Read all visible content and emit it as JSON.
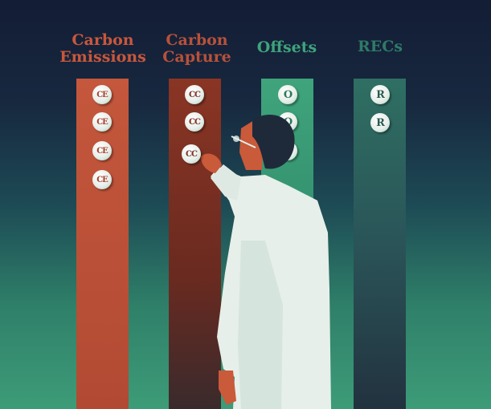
{
  "columns": [
    {
      "title_line1": "Carbon",
      "title_line2": "Emissions",
      "token": "CE",
      "color": "#c4573c",
      "title_color": "#c9573c"
    },
    {
      "title_line1": "Carbon",
      "title_line2": "Capture",
      "token": "CC",
      "color": "#8a3524",
      "title_color": "#b8513a"
    },
    {
      "title_line1": "Offsets",
      "title_line2": "",
      "token": "O",
      "color": "#3fa47c",
      "title_color": "#3fa47c"
    },
    {
      "title_line1": "RECs",
      "title_line2": "",
      "token": "R",
      "color": "#2f6f62",
      "title_color": "#2f7a68"
    }
  ]
}
